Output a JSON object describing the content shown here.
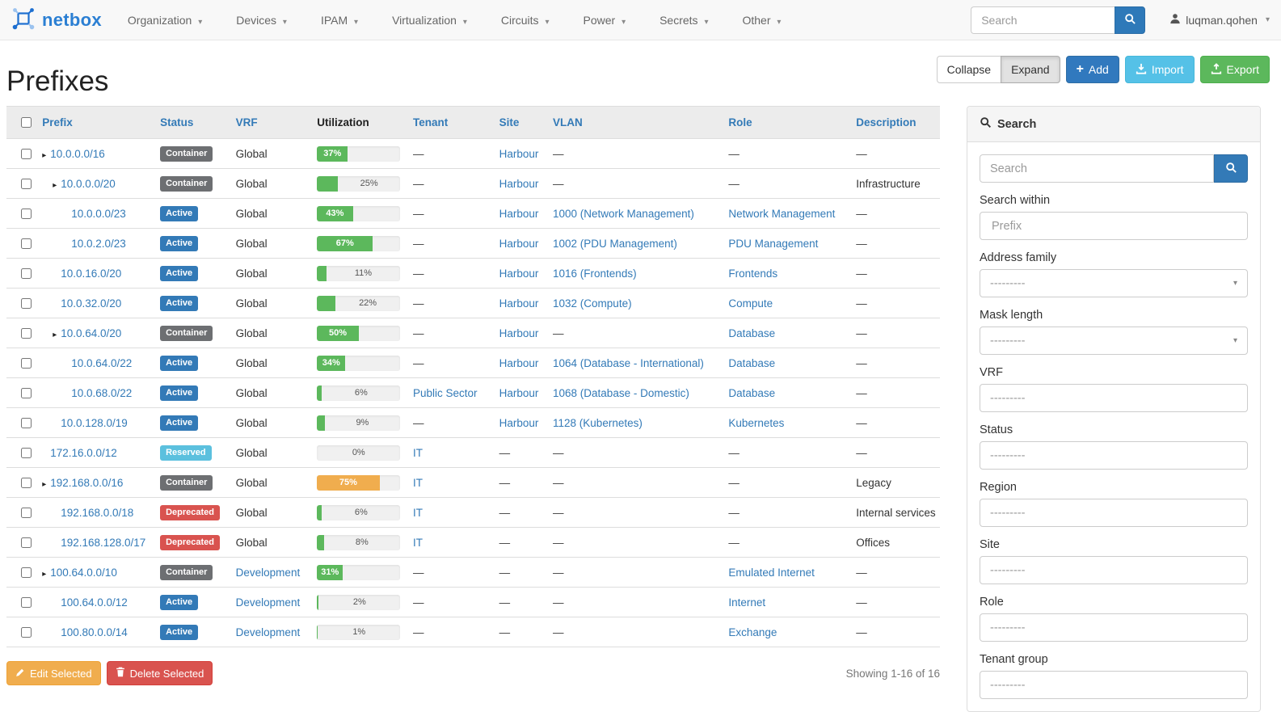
{
  "navbar": {
    "brand": "netbox",
    "items": [
      {
        "label": "Organization"
      },
      {
        "label": "Devices"
      },
      {
        "label": "IPAM"
      },
      {
        "label": "Virtualization"
      },
      {
        "label": "Circuits"
      },
      {
        "label": "Power"
      },
      {
        "label": "Secrets"
      },
      {
        "label": "Other"
      }
    ],
    "search_placeholder": "Search",
    "username": "luqman.qohen"
  },
  "page": {
    "title": "Prefixes",
    "toolbar": {
      "collapse": "Collapse",
      "expand": "Expand",
      "add": "Add",
      "import": "Import",
      "export": "Export"
    },
    "bulk": {
      "edit": "Edit Selected",
      "delete": "Delete Selected"
    },
    "showing": "Showing 1-16 of 16"
  },
  "table": {
    "empty_placeholder": "—",
    "columns": [
      {
        "label": "Prefix",
        "sortable": true
      },
      {
        "label": "Status",
        "sortable": true
      },
      {
        "label": "VRF",
        "sortable": true
      },
      {
        "label": "Utilization",
        "sortable": false
      },
      {
        "label": "Tenant",
        "sortable": true
      },
      {
        "label": "Site",
        "sortable": true
      },
      {
        "label": "VLAN",
        "sortable": true
      },
      {
        "label": "Role",
        "sortable": true
      },
      {
        "label": "Description",
        "sortable": true
      }
    ],
    "rows": [
      {
        "prefix": "10.0.0.0/16",
        "depth": 0,
        "expandable": true,
        "status": "Container",
        "vrf": "Global",
        "vrf_link": false,
        "utilization": 37,
        "bar_color": "#5cb85c",
        "tenant": null,
        "site": "Harbour",
        "vlan": null,
        "role": null,
        "description": null
      },
      {
        "prefix": "10.0.0.0/20",
        "depth": 1,
        "expandable": true,
        "status": "Container",
        "vrf": "Global",
        "vrf_link": false,
        "utilization": 25,
        "bar_color": "#5cb85c",
        "tenant": null,
        "site": "Harbour",
        "vlan": null,
        "role": null,
        "description": "Infrastructure"
      },
      {
        "prefix": "10.0.0.0/23",
        "depth": 2,
        "expandable": false,
        "status": "Active",
        "vrf": "Global",
        "vrf_link": false,
        "utilization": 43,
        "bar_color": "#5cb85c",
        "tenant": null,
        "site": "Harbour",
        "vlan": "1000 (Network Management)",
        "role": "Network Management",
        "description": null
      },
      {
        "prefix": "10.0.2.0/23",
        "depth": 2,
        "expandable": false,
        "status": "Active",
        "vrf": "Global",
        "vrf_link": false,
        "utilization": 67,
        "bar_color": "#5cb85c",
        "tenant": null,
        "site": "Harbour",
        "vlan": "1002 (PDU Management)",
        "role": "PDU Management",
        "description": null
      },
      {
        "prefix": "10.0.16.0/20",
        "depth": 1,
        "expandable": false,
        "status": "Active",
        "vrf": "Global",
        "vrf_link": false,
        "utilization": 11,
        "bar_color": "#5cb85c",
        "tenant": null,
        "site": "Harbour",
        "vlan": "1016 (Frontends)",
        "role": "Frontends",
        "description": null
      },
      {
        "prefix": "10.0.32.0/20",
        "depth": 1,
        "expandable": false,
        "status": "Active",
        "vrf": "Global",
        "vrf_link": false,
        "utilization": 22,
        "bar_color": "#5cb85c",
        "tenant": null,
        "site": "Harbour",
        "vlan": "1032 (Compute)",
        "role": "Compute",
        "description": null
      },
      {
        "prefix": "10.0.64.0/20",
        "depth": 1,
        "expandable": true,
        "status": "Container",
        "vrf": "Global",
        "vrf_link": false,
        "utilization": 50,
        "bar_color": "#5cb85c",
        "tenant": null,
        "site": "Harbour",
        "vlan": null,
        "role": "Database",
        "description": null
      },
      {
        "prefix": "10.0.64.0/22",
        "depth": 2,
        "expandable": false,
        "status": "Active",
        "vrf": "Global",
        "vrf_link": false,
        "utilization": 34,
        "bar_color": "#5cb85c",
        "tenant": null,
        "site": "Harbour",
        "vlan": "1064 (Database - International)",
        "role": "Database",
        "description": null
      },
      {
        "prefix": "10.0.68.0/22",
        "depth": 2,
        "expandable": false,
        "status": "Active",
        "vrf": "Global",
        "vrf_link": false,
        "utilization": 6,
        "bar_color": "#5cb85c",
        "tenant": "Public Sector",
        "site": "Harbour",
        "vlan": "1068 (Database - Domestic)",
        "role": "Database",
        "description": null
      },
      {
        "prefix": "10.0.128.0/19",
        "depth": 1,
        "expandable": false,
        "status": "Active",
        "vrf": "Global",
        "vrf_link": false,
        "utilization": 9,
        "bar_color": "#5cb85c",
        "tenant": null,
        "site": "Harbour",
        "vlan": "1128 (Kubernetes)",
        "role": "Kubernetes",
        "description": null
      },
      {
        "prefix": "172.16.0.0/12",
        "depth": 0,
        "expandable": false,
        "status": "Reserved",
        "vrf": "Global",
        "vrf_link": false,
        "utilization": 0,
        "bar_color": "#5cb85c",
        "tenant": "IT",
        "site": null,
        "vlan": null,
        "role": null,
        "description": null
      },
      {
        "prefix": "192.168.0.0/16",
        "depth": 0,
        "expandable": true,
        "status": "Container",
        "vrf": "Global",
        "vrf_link": false,
        "utilization": 75,
        "bar_color": "#f0ad4e",
        "tenant": "IT",
        "site": null,
        "vlan": null,
        "role": null,
        "description": "Legacy"
      },
      {
        "prefix": "192.168.0.0/18",
        "depth": 1,
        "expandable": false,
        "status": "Deprecated",
        "vrf": "Global",
        "vrf_link": false,
        "utilization": 6,
        "bar_color": "#5cb85c",
        "tenant": "IT",
        "site": null,
        "vlan": null,
        "role": null,
        "description": "Internal services"
      },
      {
        "prefix": "192.168.128.0/17",
        "depth": 1,
        "expandable": false,
        "status": "Deprecated",
        "vrf": "Global",
        "vrf_link": false,
        "utilization": 8,
        "bar_color": "#5cb85c",
        "tenant": "IT",
        "site": null,
        "vlan": null,
        "role": null,
        "description": "Offices"
      },
      {
        "prefix": "100.64.0.0/10",
        "depth": 0,
        "expandable": true,
        "status": "Container",
        "vrf": "Development",
        "vrf_link": true,
        "utilization": 31,
        "bar_color": "#5cb85c",
        "tenant": null,
        "site": null,
        "vlan": null,
        "role": "Emulated Internet",
        "description": null
      },
      {
        "prefix": "100.64.0.0/12",
        "depth": 1,
        "expandable": false,
        "status": "Active",
        "vrf": "Development",
        "vrf_link": true,
        "utilization": 2,
        "bar_color": "#5cb85c",
        "tenant": null,
        "site": null,
        "vlan": null,
        "role": "Internet",
        "description": null
      },
      {
        "prefix": "100.80.0.0/14",
        "depth": 1,
        "expandable": false,
        "status": "Active",
        "vrf": "Development",
        "vrf_link": true,
        "utilization": 1,
        "bar_color": "#5cb85c",
        "tenant": null,
        "site": null,
        "vlan": null,
        "role": "Exchange",
        "description": null
      }
    ]
  },
  "filter_panel": {
    "title": "Search",
    "search_placeholder": "Search",
    "fields": [
      {
        "label": "Search within",
        "kind": "text",
        "placeholder": "Prefix"
      },
      {
        "label": "Address family",
        "kind": "select",
        "placeholder": "---------"
      },
      {
        "label": "Mask length",
        "kind": "select",
        "placeholder": "---------"
      },
      {
        "label": "VRF",
        "kind": "box",
        "placeholder": "---------"
      },
      {
        "label": "Status",
        "kind": "box",
        "placeholder": "---------"
      },
      {
        "label": "Region",
        "kind": "box",
        "placeholder": "---------"
      },
      {
        "label": "Site",
        "kind": "box",
        "placeholder": "---------"
      },
      {
        "label": "Role",
        "kind": "box",
        "placeholder": "---------"
      },
      {
        "label": "Tenant group",
        "kind": "box",
        "placeholder": "---------"
      }
    ]
  },
  "colors": {
    "link": "#337ab7",
    "status_container": "#6d6f72",
    "status_active": "#337ab7",
    "status_reserved": "#5bc0de",
    "status_deprecated": "#d9534f",
    "util_ok": "#5cb85c",
    "util_warn": "#f0ad4e",
    "btn_add": "#3179be",
    "btn_import": "#55c1e7",
    "btn_export": "#5cb85c",
    "btn_edit": "#f0ad4e",
    "btn_delete": "#d9534f"
  }
}
